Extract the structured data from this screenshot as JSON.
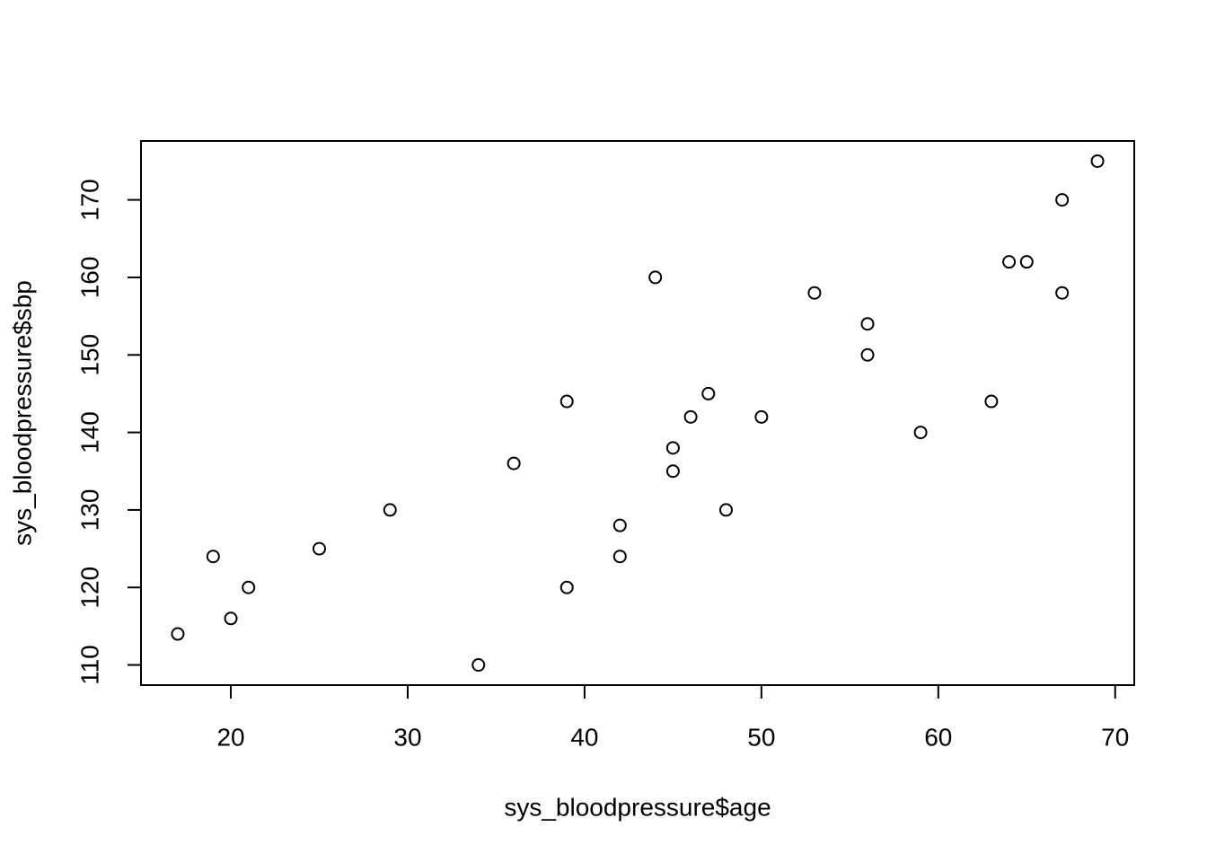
{
  "chart_data": {
    "type": "scatter",
    "x_label": "sys_bloodpressure$age",
    "y_label": "sys_bloodpressure$sbp",
    "x": [
      17,
      19,
      20,
      21,
      25,
      29,
      34,
      36,
      39,
      39,
      42,
      42,
      44,
      45,
      45,
      46,
      47,
      48,
      50,
      53,
      56,
      56,
      59,
      63,
      64,
      65,
      67,
      67,
      69
    ],
    "values": [
      114,
      124,
      116,
      120,
      125,
      130,
      110,
      136,
      144,
      120,
      128,
      124,
      160,
      138,
      135,
      142,
      145,
      130,
      142,
      158,
      154,
      150,
      140,
      144,
      162,
      162,
      170,
      158,
      175
    ],
    "color": "#000000",
    "xlim": [
      14.92,
      71.08
    ],
    "ylim": [
      107.4,
      177.6
    ],
    "xticks": [
      20,
      30,
      40,
      50,
      60,
      70
    ],
    "yticks": [
      110,
      120,
      130,
      140,
      150,
      160,
      170
    ],
    "grid": false
  }
}
